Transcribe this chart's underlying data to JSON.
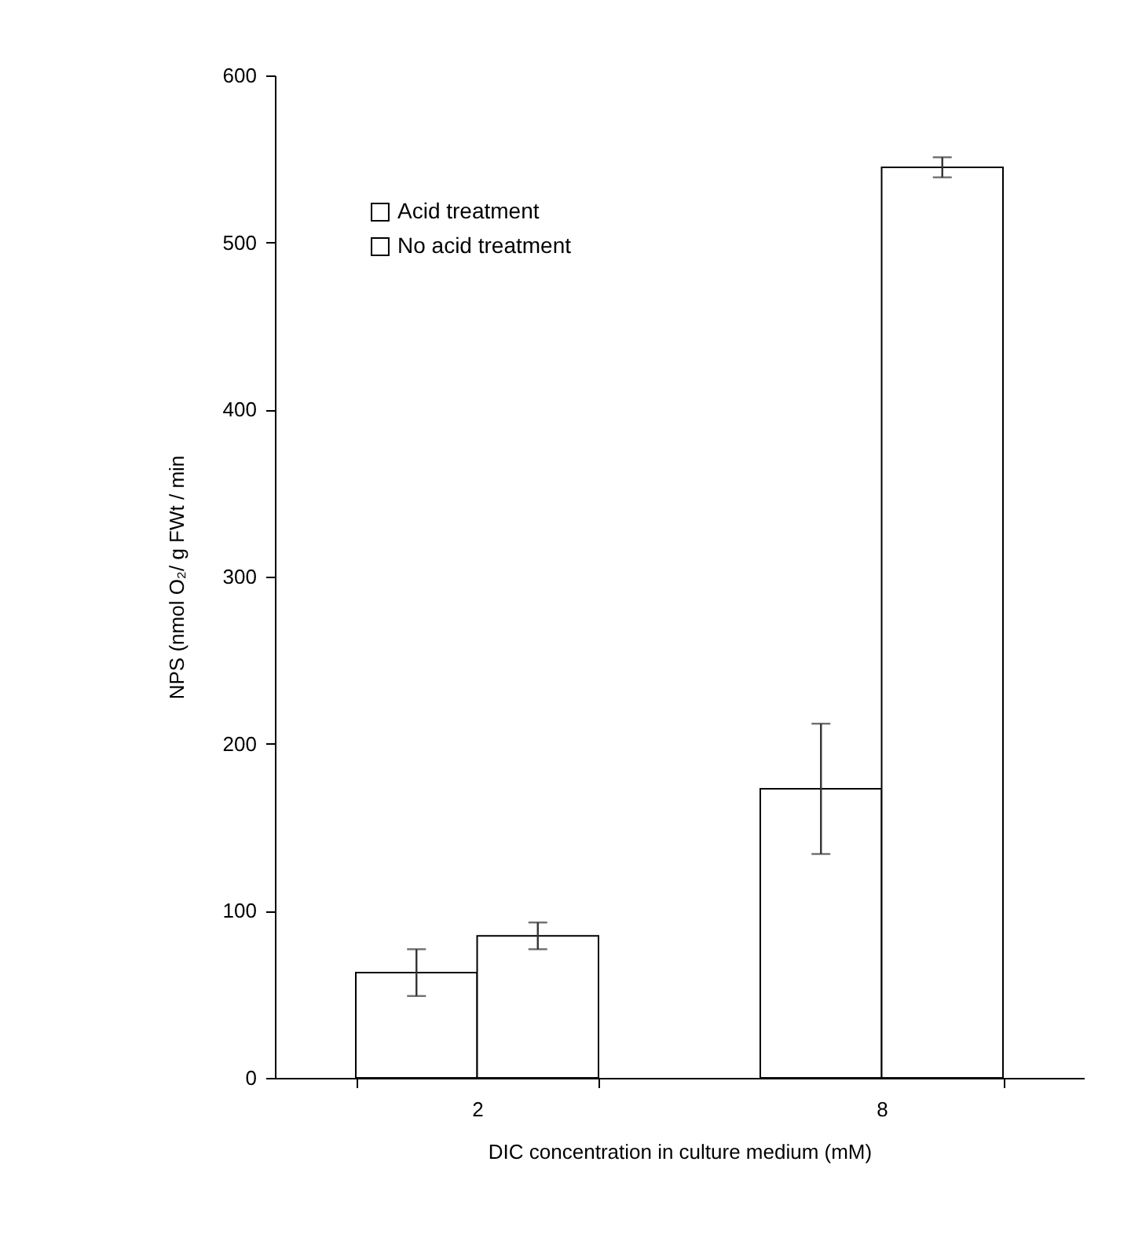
{
  "chart_data": {
    "type": "bar",
    "xlabel": "DIC concentration in culture medium (mM)",
    "ylabel": "NPS (nmol O₂/ g FWt / min",
    "categories": [
      "2",
      "8"
    ],
    "series": [
      {
        "name": "Acid treatment",
        "color": "#ffffff",
        "values": [
          63,
          173
        ],
        "errors": [
          14,
          39
        ]
      },
      {
        "name": "No acid treatment",
        "color": "#ffffff",
        "values": [
          85,
          545
        ],
        "errors": [
          8,
          6
        ]
      }
    ],
    "ylim": [
      0,
      600
    ],
    "yticks": [
      0,
      100,
      200,
      300,
      400,
      500,
      600
    ],
    "grid": false,
    "legend": "top left"
  }
}
